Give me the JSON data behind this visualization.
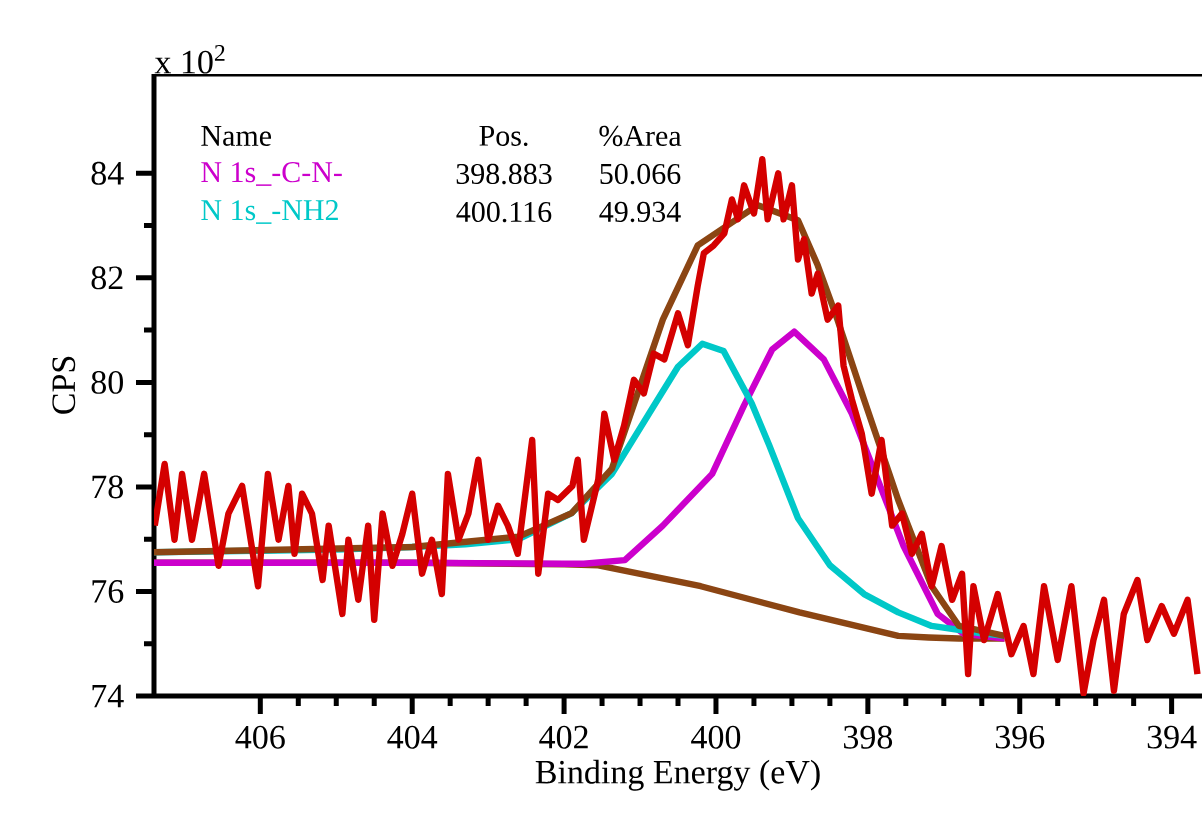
{
  "chart_data": {
    "type": "line",
    "xlabel": "Binding Energy (eV)",
    "ylabel": "CPS",
    "annotations": [
      "x 10$^{2}$",
      "Name",
      "Pos.",
      "%Area",
      "398.883",
      "50.066",
      "400.116",
      "49.934"
    ],
    "xlim": [
      407.4,
      393.6
    ],
    "xticks": [
      406,
      404,
      402,
      400,
      398,
      396,
      394
    ],
    "ylim": [
      74,
      85.9
    ],
    "yticks": [
      74,
      76,
      78,
      80,
      82,
      84
    ],
    "grid": false,
    "legend": "top left",
    "marker": "none",
    "line_style": "solid",
    "series": [
      {
        "color": "#8b4513",
        "x": [
          407.4,
          404,
          402,
          401.55,
          400.2,
          398.9,
          397.6,
          397.2,
          396.8,
          396.2
        ],
        "values": [
          76.55,
          76.55,
          76.52,
          76.5,
          76.1,
          75.6,
          75.15,
          75.12,
          75.1,
          75.1
        ]
      },
      {
        "name": "N 1s_-C-N-",
        "color": "#cc00cc",
        "x": [
          407.4,
          404,
          402,
          401.74,
          401.2,
          400.7,
          400.05,
          399.63,
          399.26,
          398.97,
          398.58,
          398.21,
          397.87,
          397.53,
          397.08,
          396.74,
          396.2
        ],
        "values": [
          76.55,
          76.55,
          76.53,
          76.53,
          76.6,
          77.26,
          78.25,
          79.56,
          80.63,
          80.97,
          80.44,
          79.4,
          78.14,
          76.87,
          75.57,
          75.19,
          75.1
        ]
      },
      {
        "name": "N 1s_-NH2",
        "color": "#00c8c8",
        "x": [
          407.4,
          406,
          405,
          404,
          403.3,
          402.6,
          401.9,
          401.37,
          400.84,
          400.5,
          400.18,
          399.9,
          399.53,
          399.3,
          398.92,
          398.5,
          398.05,
          397.6,
          397.16,
          396.5,
          396.2
        ],
        "values": [
          76.75,
          76.78,
          76.8,
          76.85,
          76.9,
          77.0,
          77.5,
          78.25,
          79.5,
          80.3,
          80.74,
          80.6,
          79.6,
          78.8,
          77.4,
          76.5,
          75.95,
          75.6,
          75.34,
          75.2,
          75.15
        ]
      },
      {
        "color": "#8b4513",
        "x": [
          407.4,
          404,
          402.6,
          401.9,
          401.37,
          400.7,
          400.24,
          399.45,
          398.92,
          398.66,
          398.4,
          398.05,
          397.6,
          397.16,
          396.8,
          396.2
        ],
        "values": [
          76.75,
          76.85,
          77.05,
          77.5,
          78.35,
          81.2,
          82.62,
          83.39,
          83.1,
          82.24,
          81.2,
          79.67,
          77.75,
          76.1,
          75.34,
          75.15
        ]
      },
      {
        "color": "#d40000",
        "x": [
          407.39,
          407.26,
          407.13,
          407.03,
          406.9,
          406.74,
          406.55,
          406.42,
          406.24,
          406.03,
          405.9,
          405.76,
          405.63,
          405.55,
          405.45,
          405.32,
          405.18,
          405.1,
          404.92,
          404.84,
          404.71,
          404.58,
          404.5,
          404.39,
          404.26,
          404.13,
          404.0,
          403.87,
          403.74,
          403.61,
          403.53,
          403.39,
          403.26,
          403.13,
          403.0,
          402.87,
          402.74,
          402.61,
          402.42,
          402.34,
          402.21,
          402.08,
          401.89,
          401.82,
          401.74,
          401.55,
          401.47,
          401.34,
          401.21,
          401.08,
          400.95,
          400.82,
          400.68,
          400.5,
          400.37,
          400.24,
          400.16,
          400.03,
          399.89,
          399.79,
          399.71,
          399.63,
          399.5,
          399.39,
          399.32,
          399.18,
          399.11,
          399.0,
          398.92,
          398.84,
          398.74,
          398.66,
          398.53,
          398.39,
          398.32,
          398.21,
          398.08,
          397.95,
          397.82,
          397.68,
          397.55,
          397.42,
          397.29,
          397.16,
          397.03,
          396.89,
          396.76,
          396.68,
          396.61,
          396.47,
          396.29,
          396.11,
          395.95,
          395.82,
          395.68,
          395.5,
          395.32,
          395.16,
          395.03,
          394.89,
          394.76,
          394.63,
          394.45,
          394.32,
          394.13,
          393.97,
          393.79,
          393.66
        ],
        "values": [
          77.26,
          78.44,
          76.99,
          78.25,
          76.99,
          78.25,
          76.49,
          77.49,
          78.02,
          76.1,
          78.25,
          76.99,
          78.02,
          76.72,
          77.87,
          77.49,
          76.22,
          77.26,
          75.57,
          76.99,
          75.84,
          77.26,
          75.46,
          77.49,
          76.49,
          77.1,
          77.87,
          76.34,
          76.99,
          75.95,
          78.25,
          76.99,
          77.49,
          78.52,
          76.99,
          77.64,
          77.26,
          76.72,
          78.9,
          76.34,
          77.87,
          77.75,
          78.02,
          78.52,
          76.99,
          78.14,
          79.4,
          78.52,
          79.17,
          80.05,
          79.79,
          80.55,
          80.44,
          81.32,
          80.71,
          81.85,
          82.47,
          82.62,
          82.85,
          83.5,
          83.12,
          83.77,
          83.23,
          84.27,
          83.12,
          84.0,
          83.12,
          83.77,
          82.35,
          82.74,
          81.7,
          82.08,
          81.2,
          81.47,
          80.32,
          79.67,
          79.02,
          77.87,
          78.9,
          77.26,
          77.49,
          76.72,
          77.1,
          76.1,
          76.87,
          75.84,
          76.34,
          74.42,
          76.1,
          75.07,
          75.95,
          74.8,
          75.34,
          74.42,
          76.1,
          74.69,
          76.1,
          74.05,
          75.07,
          75.84,
          74.1,
          75.57,
          76.22,
          75.07,
          75.72,
          75.19,
          75.84,
          74.42
        ]
      }
    ]
  }
}
